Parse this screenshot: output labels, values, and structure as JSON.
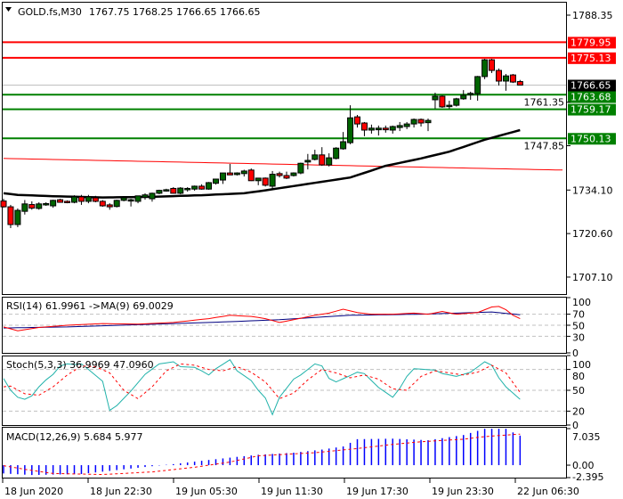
{
  "header": {
    "symbol": "GOLD.fs,M30",
    "ohlc": "1767.75 1768.25 1766.65 1766.65"
  },
  "colors": {
    "bull": "#006400",
    "bear": "#ff0000",
    "support": "#008000",
    "resistance": "#ff0000",
    "ma": "#000000",
    "ma_slow": "#ff0000",
    "rsi": "#ff0000",
    "rsi_ma": "#000080",
    "stoch_main": "#20b2aa",
    "stoch_signal": "#ff0000",
    "macd_hist": "#0000ff",
    "macd_signal": "#ff0000"
  },
  "price_axis": {
    "labels": [
      "1788.35",
      "1761.35",
      "1747.85",
      "1734.10",
      "1720.60",
      "1707.10"
    ],
    "values": [
      1788.35,
      1761.35,
      1747.85,
      1734.1,
      1720.6,
      1707.1
    ],
    "current": "1766.65",
    "current_value": 1766.65,
    "levels": [
      {
        "label": "1779.95",
        "value": 1779.95,
        "kind": "resistance"
      },
      {
        "label": "1775.13",
        "value": 1775.13,
        "kind": "resistance"
      },
      {
        "label": "1763.68",
        "value": 1763.68,
        "kind": "support"
      },
      {
        "label": "1759.17",
        "value": 1759.17,
        "kind": "support"
      },
      {
        "label": "1750.13",
        "value": 1750.13,
        "kind": "support"
      }
    ]
  },
  "candles": [
    [
      1730.7,
      1731.4,
      1728.6,
      1728.9
    ],
    [
      1728.9,
      1729.5,
      1722.3,
      1723.4
    ],
    [
      1723.4,
      1728.4,
      1722.6,
      1727.8
    ],
    [
      1727.5,
      1731.0,
      1726.5,
      1729.8
    ],
    [
      1729.6,
      1730.6,
      1728.0,
      1728.5
    ],
    [
      1728.4,
      1730.3,
      1728.0,
      1729.8
    ],
    [
      1729.6,
      1730.3,
      1729.2,
      1729.9
    ],
    [
      1729.2,
      1731.1,
      1728.6,
      1730.9
    ],
    [
      1731.1,
      1731.4,
      1730.2,
      1730.3
    ],
    [
      1730.6,
      1730.9,
      1730.0,
      1730.2
    ],
    [
      1730.3,
      1732.5,
      1730.0,
      1732.0
    ],
    [
      1732.0,
      1732.6,
      1729.5,
      1730.6
    ],
    [
      1730.6,
      1732.6,
      1730.0,
      1732.0
    ],
    [
      1731.7,
      1732.3,
      1730.3,
      1730.6
    ],
    [
      1730.6,
      1731.0,
      1728.9,
      1729.2
    ],
    [
      1729.5,
      1730.0,
      1728.0,
      1728.9
    ],
    [
      1729.0,
      1731.1,
      1728.7,
      1730.9
    ],
    [
      1730.9,
      1731.7,
      1730.6,
      1731.7
    ],
    [
      1730.9,
      1731.4,
      1729.0,
      1731.1
    ],
    [
      1730.6,
      1732.0,
      1730.0,
      1732.3
    ],
    [
      1731.9,
      1733.1,
      1731.1,
      1732.6
    ],
    [
      1731.4,
      1733.3,
      1730.5,
      1733.1
    ],
    [
      1733.1,
      1734.2,
      1732.8,
      1734.0
    ],
    [
      1734.0,
      1734.5,
      1733.6,
      1734.2
    ],
    [
      1734.6,
      1735.0,
      1733.0,
      1733.1
    ],
    [
      1733.1,
      1735.0,
      1732.8,
      1734.7
    ],
    [
      1734.5,
      1735.0,
      1733.6,
      1734.6
    ],
    [
      1734.4,
      1735.5,
      1733.9,
      1735.3
    ],
    [
      1735.3,
      1735.9,
      1734.2,
      1734.4
    ],
    [
      1734.4,
      1736.6,
      1734.2,
      1736.4
    ],
    [
      1736.2,
      1737.5,
      1735.8,
      1737.5
    ],
    [
      1737.2,
      1739.4,
      1736.0,
      1739.4
    ],
    [
      1739.4,
      1742.2,
      1738.9,
      1738.8
    ],
    [
      1738.9,
      1739.6,
      1738.6,
      1739.4
    ],
    [
      1739.2,
      1740.4,
      1738.3,
      1740.0
    ],
    [
      1740.3,
      1740.8,
      1736.9,
      1737.0
    ],
    [
      1737.0,
      1737.8,
      1735.6,
      1737.8
    ],
    [
      1737.8,
      1738.0,
      1735.2,
      1735.6
    ],
    [
      1735.3,
      1740.0,
      1734.2,
      1739.0
    ],
    [
      1739.2,
      1739.8,
      1738.0,
      1738.6
    ],
    [
      1738.6,
      1739.8,
      1737.5,
      1737.8
    ],
    [
      1738.6,
      1739.6,
      1738.3,
      1739.4
    ],
    [
      1739.4,
      1742.6,
      1739.0,
      1742.4
    ],
    [
      1742.8,
      1745.3,
      1740.5,
      1743.3
    ],
    [
      1743.6,
      1746.6,
      1743.3,
      1745.0
    ],
    [
      1745.0,
      1747.4,
      1741.6,
      1741.9
    ],
    [
      1741.9,
      1745.5,
      1741.4,
      1744.1
    ],
    [
      1743.9,
      1747.4,
      1743.6,
      1747.1
    ],
    [
      1746.9,
      1752.1,
      1746.6,
      1749.1
    ],
    [
      1748.8,
      1760.4,
      1748.3,
      1756.5
    ],
    [
      1756.8,
      1757.4,
      1753.5,
      1754.6
    ],
    [
      1754.9,
      1755.2,
      1750.8,
      1752.7
    ],
    [
      1752.7,
      1754.4,
      1751.6,
      1753.3
    ],
    [
      1752.8,
      1754.1,
      1751.0,
      1753.3
    ],
    [
      1753.3,
      1754.1,
      1751.9,
      1752.8
    ],
    [
      1752.7,
      1754.1,
      1751.6,
      1753.8
    ],
    [
      1753.5,
      1755.2,
      1752.4,
      1754.1
    ],
    [
      1753.8,
      1755.2,
      1753.0,
      1754.6
    ],
    [
      1754.6,
      1756.3,
      1753.5,
      1756.0
    ],
    [
      1756.0,
      1756.3,
      1753.8,
      1754.9
    ],
    [
      1755.0,
      1756.3,
      1752.4,
      1755.7
    ],
    [
      1762.1,
      1764.3,
      1759.3,
      1763.2
    ],
    [
      1763.2,
      1763.5,
      1759.6,
      1759.9
    ],
    [
      1760.2,
      1761.8,
      1759.3,
      1760.4
    ],
    [
      1760.4,
      1762.7,
      1760.0,
      1762.4
    ],
    [
      1762.4,
      1765.1,
      1762.1,
      1763.5
    ],
    [
      1763.9,
      1764.6,
      1762.1,
      1764.1
    ],
    [
      1764.0,
      1769.5,
      1761.8,
      1769.3
    ],
    [
      1769.3,
      1774.8,
      1768.5,
      1774.5
    ],
    [
      1774.5,
      1774.8,
      1770.4,
      1771.2
    ],
    [
      1771.2,
      1771.8,
      1766.5,
      1767.9
    ],
    [
      1767.9,
      1770.1,
      1764.9,
      1769.5
    ],
    [
      1769.8,
      1770.1,
      1767.3,
      1767.6
    ],
    [
      1767.75,
      1768.25,
      1766.65,
      1766.65
    ]
  ],
  "ma_fast": [
    [
      1,
      1733.1
    ],
    [
      3,
      1732.6
    ],
    [
      8,
      1732.2
    ],
    [
      15,
      1731.8
    ],
    [
      22,
      1732.0
    ],
    [
      29,
      1732.5
    ],
    [
      35,
      1733.1
    ],
    [
      38,
      1734.0
    ],
    [
      44,
      1736.0
    ],
    [
      50,
      1738.0
    ],
    [
      55,
      1741.6
    ],
    [
      60,
      1743.9
    ],
    [
      64,
      1746.0
    ],
    [
      69,
      1749.7
    ],
    [
      74,
      1752.7
    ]
  ],
  "ma_slow": [
    [
      1,
      1743.9
    ],
    [
      80,
      1740.3
    ]
  ],
  "rsi": {
    "label": "RSI(14) 61.9961  ->MA(9) 69.0029",
    "levels": [
      "100",
      "70",
      "50",
      "30",
      "0"
    ],
    "level_values": [
      100,
      70,
      50,
      30,
      0
    ],
    "grid": [
      70,
      50,
      30
    ],
    "main": [
      [
        1,
        47
      ],
      [
        3,
        40
      ],
      [
        6,
        46
      ],
      [
        10,
        50
      ],
      [
        15,
        53
      ],
      [
        20,
        52
      ],
      [
        25,
        55
      ],
      [
        30,
        62
      ],
      [
        33,
        68
      ],
      [
        36,
        66
      ],
      [
        38,
        62
      ],
      [
        40,
        55
      ],
      [
        42,
        60
      ],
      [
        45,
        68
      ],
      [
        47,
        72
      ],
      [
        49,
        79
      ],
      [
        51,
        73
      ],
      [
        53,
        70
      ],
      [
        56,
        70
      ],
      [
        59,
        72
      ],
      [
        61,
        70
      ],
      [
        63,
        75
      ],
      [
        65,
        70
      ],
      [
        68,
        73
      ],
      [
        70,
        83
      ],
      [
        71,
        84
      ],
      [
        72,
        78
      ],
      [
        73,
        68
      ],
      [
        74,
        62
      ]
    ],
    "ma": [
      [
        1,
        45
      ],
      [
        10,
        47
      ],
      [
        20,
        51
      ],
      [
        30,
        55
      ],
      [
        40,
        60
      ],
      [
        50,
        68
      ],
      [
        60,
        70
      ],
      [
        70,
        74
      ],
      [
        74,
        69
      ]
    ]
  },
  "stoch": {
    "label": "Stoch(5,3,3) 36.9969 47.0960",
    "levels": [
      "100",
      "80",
      "50",
      "20",
      "0"
    ],
    "level_values": [
      100,
      80,
      50,
      20,
      0
    ],
    "grid": [
      80,
      50,
      20
    ],
    "main": [
      [
        1,
        67
      ],
      [
        2,
        50
      ],
      [
        3,
        40
      ],
      [
        4,
        37
      ],
      [
        5,
        42
      ],
      [
        6,
        55
      ],
      [
        7,
        65
      ],
      [
        8,
        73
      ],
      [
        9,
        85
      ],
      [
        10,
        88
      ],
      [
        11,
        87
      ],
      [
        12,
        88
      ],
      [
        13,
        80
      ],
      [
        15,
        63
      ],
      [
        16,
        21
      ],
      [
        17,
        28
      ],
      [
        19,
        49
      ],
      [
        21,
        73
      ],
      [
        23,
        88
      ],
      [
        25,
        91
      ],
      [
        26,
        84
      ],
      [
        28,
        83
      ],
      [
        29,
        78
      ],
      [
        30,
        72
      ],
      [
        31,
        81
      ],
      [
        33,
        94
      ],
      [
        34,
        78
      ],
      [
        36,
        64
      ],
      [
        37,
        50
      ],
      [
        38,
        39
      ],
      [
        39,
        15
      ],
      [
        40,
        40
      ],
      [
        42,
        66
      ],
      [
        43,
        72
      ],
      [
        45,
        88
      ],
      [
        46,
        85
      ],
      [
        47,
        67
      ],
      [
        48,
        62
      ],
      [
        51,
        76
      ],
      [
        52,
        74
      ],
      [
        54,
        54
      ],
      [
        56,
        40
      ],
      [
        57,
        53
      ],
      [
        58,
        70
      ],
      [
        59,
        81
      ],
      [
        62,
        79
      ],
      [
        63,
        74
      ],
      [
        65,
        70
      ],
      [
        67,
        76
      ],
      [
        69,
        91
      ],
      [
        70,
        86
      ],
      [
        71,
        68
      ],
      [
        72,
        55
      ],
      [
        74,
        37
      ]
    ],
    "signal": [
      [
        1,
        55
      ],
      [
        2,
        56
      ],
      [
        4,
        45
      ],
      [
        6,
        43
      ],
      [
        8,
        55
      ],
      [
        10,
        72
      ],
      [
        12,
        85
      ],
      [
        14,
        84
      ],
      [
        16,
        75
      ],
      [
        18,
        50
      ],
      [
        20,
        38
      ],
      [
        22,
        55
      ],
      [
        24,
        78
      ],
      [
        26,
        88
      ],
      [
        28,
        86
      ],
      [
        30,
        80
      ],
      [
        32,
        78
      ],
      [
        34,
        84
      ],
      [
        36,
        76
      ],
      [
        38,
        62
      ],
      [
        40,
        38
      ],
      [
        42,
        46
      ],
      [
        44,
        65
      ],
      [
        46,
        80
      ],
      [
        48,
        75
      ],
      [
        50,
        68
      ],
      [
        52,
        72
      ],
      [
        54,
        66
      ],
      [
        56,
        52
      ],
      [
        58,
        50
      ],
      [
        60,
        70
      ],
      [
        62,
        78
      ],
      [
        64,
        75
      ],
      [
        66,
        72
      ],
      [
        68,
        76
      ],
      [
        70,
        86
      ],
      [
        72,
        75
      ],
      [
        74,
        47
      ]
    ]
  },
  "macd": {
    "label": "MACD(12,26,9) 5.684 5.977",
    "levels": [
      "7.035",
      "0.00",
      "-2.395"
    ],
    "range": [
      -2.395,
      7.035
    ],
    "main": [
      [
        1,
        -1.6
      ],
      [
        5,
        -1.9
      ],
      [
        12,
        -1.7
      ],
      [
        18,
        -0.8
      ],
      [
        22,
        -0.2
      ],
      [
        25,
        0.2
      ],
      [
        30,
        1.0
      ],
      [
        34,
        1.6
      ],
      [
        37,
        2.0
      ],
      [
        42,
        2.4
      ],
      [
        46,
        3.0
      ],
      [
        49,
        3.6
      ],
      [
        51,
        5.0
      ],
      [
        56,
        5.1
      ],
      [
        61,
        4.8
      ],
      [
        66,
        5.8
      ],
      [
        68,
        6.6
      ],
      [
        69,
        7.0
      ],
      [
        72,
        7.0
      ],
      [
        73,
        6.3
      ],
      [
        74,
        5.684
      ]
    ],
    "signal": [
      [
        1,
        -0.1
      ],
      [
        4,
        -0.8
      ],
      [
        8,
        -1.6
      ],
      [
        15,
        -1.8
      ],
      [
        22,
        -1.3
      ],
      [
        28,
        -0.4
      ],
      [
        33,
        0.6
      ],
      [
        37,
        1.8
      ],
      [
        45,
        2.4
      ],
      [
        51,
        3.2
      ],
      [
        56,
        4.0
      ],
      [
        60,
        4.5
      ],
      [
        66,
        5.0
      ],
      [
        69,
        5.5
      ],
      [
        74,
        5.977
      ]
    ]
  },
  "time_axis": [
    "18 Jun 2020",
    "18 Jun 22:30",
    "19 Jun 05:30",
    "19 Jun 11:30",
    "19 Jun 17:30",
    "19 Jun 23:30",
    "22 Jun 06:30"
  ]
}
